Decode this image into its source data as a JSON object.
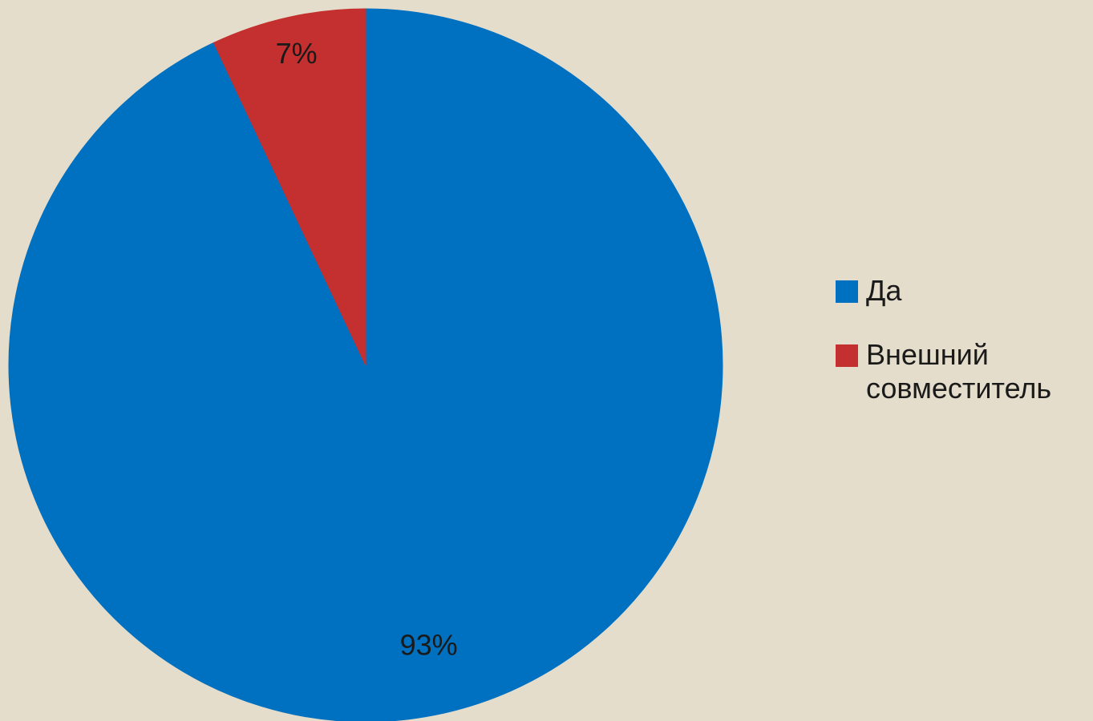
{
  "chart_data": {
    "type": "pie",
    "title": "",
    "legend_position": "right",
    "slices": [
      {
        "name": "Да",
        "value": 93,
        "label": "93%",
        "color": "#0070C0"
      },
      {
        "name": "Внешний совместитель",
        "value": 7,
        "label": "7%",
        "color": "#C3302F"
      }
    ]
  },
  "legend": {
    "items": [
      {
        "label": "Да",
        "color": "#0070C0"
      },
      {
        "label": "Внешний совместитель",
        "color": "#C3302F"
      }
    ]
  },
  "colors": {
    "background": "#E5DDCB"
  }
}
